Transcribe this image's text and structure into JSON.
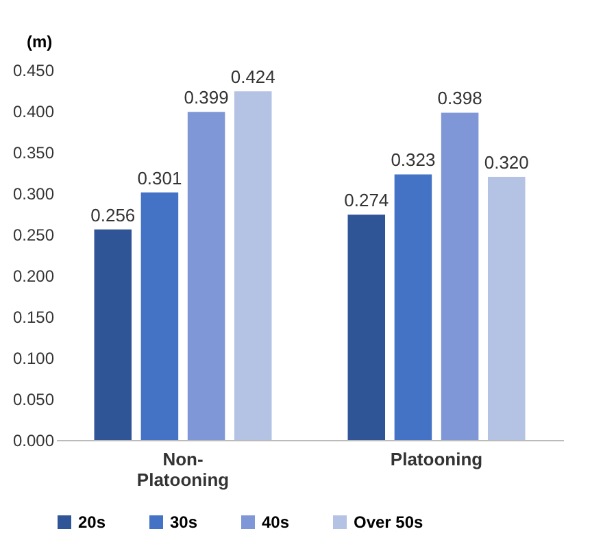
{
  "chart_data": {
    "type": "bar",
    "ylabel": "(m)",
    "categories": [
      "Non-\nPlatooning",
      "Platooning"
    ],
    "series": [
      {
        "name": "20s",
        "color": "#2f5597",
        "values": [
          0.256,
          0.274
        ],
        "value_labels": [
          "0.256",
          "0.274"
        ]
      },
      {
        "name": "30s",
        "color": "#4472c4",
        "values": [
          0.301,
          0.323
        ],
        "value_labels": [
          "0.301",
          "0.323"
        ]
      },
      {
        "name": "40s",
        "color": "#7f97d6",
        "values": [
          0.399,
          0.398
        ],
        "value_labels": [
          "0.399",
          "0.398"
        ]
      },
      {
        "name": "Over 50s",
        "color": "#b4c2e4",
        "values": [
          0.424,
          0.32
        ],
        "value_labels": [
          "0.424",
          "0.320"
        ]
      }
    ],
    "ylim": [
      0,
      0.45
    ],
    "yticks": [
      {
        "value": 0,
        "label": "0.000"
      },
      {
        "value": 0.05,
        "label": "0.050"
      },
      {
        "value": 0.1,
        "label": "0.100"
      },
      {
        "value": 0.15,
        "label": "0.150"
      },
      {
        "value": 0.2,
        "label": "0.200"
      },
      {
        "value": 0.25,
        "label": "0.250"
      },
      {
        "value": 0.3,
        "label": "0.300"
      },
      {
        "value": 0.35,
        "label": "0.350"
      },
      {
        "value": 0.4,
        "label": "0.400"
      },
      {
        "value": 0.45,
        "label": "0.450"
      }
    ],
    "grid": false,
    "legend": "bottom"
  }
}
